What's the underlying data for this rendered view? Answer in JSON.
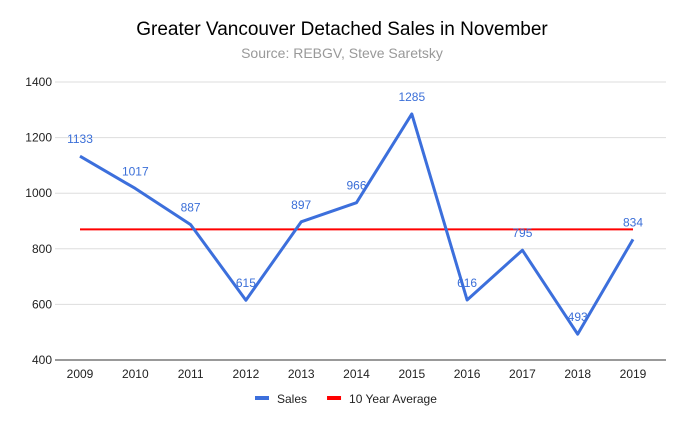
{
  "chart_data": {
    "type": "line",
    "title": "Greater Vancouver Detached Sales in November",
    "subtitle": "Source: REBGV, Steve Saretsky",
    "xlabel": "",
    "ylabel": "",
    "categories": [
      "2009",
      "2010",
      "2011",
      "2012",
      "2013",
      "2014",
      "2015",
      "2016",
      "2017",
      "2018",
      "2019"
    ],
    "series": [
      {
        "name": "Sales",
        "color": "#3c6fdc",
        "values": [
          1133,
          1017,
          887,
          615,
          897,
          966,
          1285,
          616,
          795,
          493,
          834
        ]
      },
      {
        "name": "10 Year Average",
        "color": "#ff0000",
        "values": [
          870,
          870,
          870,
          870,
          870,
          870,
          870,
          870,
          870,
          870,
          870
        ]
      }
    ],
    "ylim": [
      400,
      1400
    ],
    "yticks": [
      400,
      600,
      800,
      1000,
      1200,
      1400
    ],
    "grid": true,
    "legend": "bottom"
  }
}
